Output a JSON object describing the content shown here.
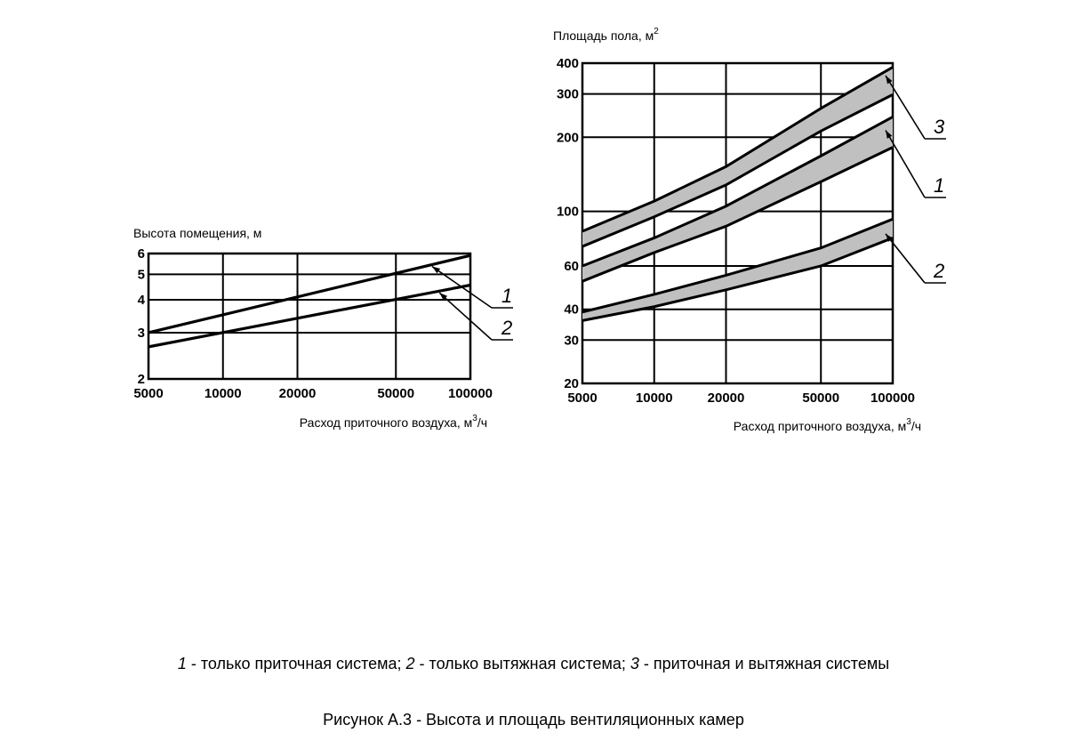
{
  "chart_data": [
    {
      "type": "line",
      "title": "",
      "ylabel": "Высота помещения, м",
      "xlabel_main": "Расход приточного воздуха, м",
      "xlabel_sup": "3",
      "xlabel_tail": "/ч",
      "x_scale": "log",
      "y_scale": "log",
      "xlim": [
        5000,
        100000
      ],
      "ylim": [
        2,
        6
      ],
      "x_ticks": [
        5000,
        10000,
        20000,
        50000,
        100000
      ],
      "x_tick_labels": [
        "5000",
        "10000",
        "20000",
        "50000",
        "100000"
      ],
      "y_ticks": [
        2,
        3,
        4,
        5,
        6
      ],
      "y_tick_labels": [
        "2",
        "3",
        "4",
        "5",
        "6"
      ],
      "grid": true,
      "series": [
        {
          "name": "1",
          "type": "line",
          "points": [
            [
              5000,
              3.0
            ],
            [
              100000,
              5.9
            ]
          ]
        },
        {
          "name": "2",
          "type": "line",
          "points": [
            [
              5000,
              2.65
            ],
            [
              100000,
              4.55
            ]
          ]
        }
      ],
      "annotations": [
        {
          "text": "1",
          "series": "1"
        },
        {
          "text": "2",
          "series": "2"
        }
      ]
    },
    {
      "type": "area",
      "title": "",
      "ylabel_main": "Площадь пола, м",
      "ylabel_sup": "2",
      "xlabel_main": "Расход приточного воздуха, м",
      "xlabel_sup": "3",
      "xlabel_tail": "/ч",
      "x_scale": "log",
      "y_scale": "log",
      "xlim": [
        5000,
        100000
      ],
      "ylim": [
        20,
        400
      ],
      "x_ticks": [
        5000,
        10000,
        20000,
        50000,
        100000
      ],
      "x_tick_labels": [
        "5000",
        "10000",
        "20000",
        "50000",
        "100000"
      ],
      "y_ticks": [
        20,
        30,
        40,
        60,
        100,
        200,
        300,
        400
      ],
      "y_tick_labels": [
        "20",
        "30",
        "40",
        "60",
        "100",
        "200",
        "300",
        "400"
      ],
      "grid": true,
      "series": [
        {
          "name": "3",
          "upper": [
            [
              5000,
              83
            ],
            [
              10000,
              110
            ],
            [
              20000,
              152
            ],
            [
              50000,
              262
            ],
            [
              100000,
              385
            ]
          ],
          "lower": [
            [
              5000,
              72
            ],
            [
              10000,
              95
            ],
            [
              20000,
              128
            ],
            [
              50000,
              212
            ],
            [
              100000,
              298
            ]
          ]
        },
        {
          "name": "1",
          "upper": [
            [
              5000,
              60
            ],
            [
              10000,
              78
            ],
            [
              20000,
              105
            ],
            [
              50000,
              168
            ],
            [
              100000,
              242
            ]
          ],
          "lower": [
            [
              5000,
              52
            ],
            [
              10000,
              68
            ],
            [
              20000,
              87
            ],
            [
              50000,
              132
            ],
            [
              100000,
              182
            ]
          ]
        },
        {
          "name": "2",
          "upper": [
            [
              5000,
              39
            ],
            [
              10000,
              46
            ],
            [
              20000,
              55
            ],
            [
              50000,
              71
            ],
            [
              100000,
              93
            ]
          ],
          "lower": [
            [
              5000,
              36
            ],
            [
              10000,
              41
            ],
            [
              20000,
              48
            ],
            [
              50000,
              60
            ],
            [
              100000,
              78
            ]
          ]
        }
      ],
      "band_color": "#c0c0c0",
      "annotations": [
        {
          "text": "3",
          "series": "3"
        },
        {
          "text": "1",
          "series": "1"
        },
        {
          "text": "2",
          "series": "2"
        }
      ]
    }
  ],
  "legend": {
    "items": [
      {
        "num": "1",
        "text": " - только приточная система; "
      },
      {
        "num": "2",
        "text": " - только вытяжная система; "
      },
      {
        "num": "3",
        "text": " - приточная и вытяжная системы"
      }
    ]
  },
  "caption": "Рисунок А.3 - Высота и площадь вентиляционных камер"
}
